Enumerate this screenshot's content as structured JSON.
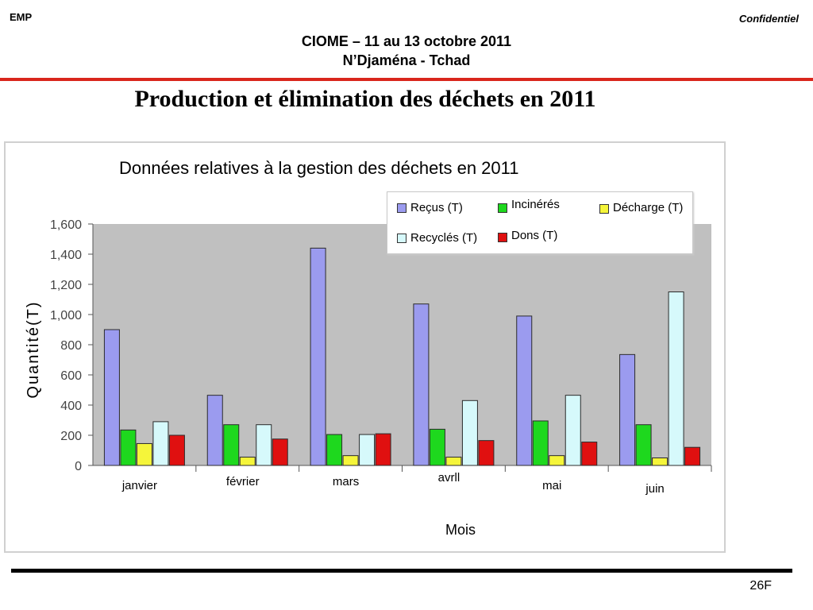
{
  "header": {
    "left": "EMP",
    "right": "Confidentiel",
    "title_line1": "CIOME – 11 au 13 octobre  2011",
    "title_line2": "N’Djaména  - Tchad"
  },
  "slide_title": "Production et élimination des déchets en 2011",
  "footer": {
    "page": "26F"
  },
  "colors": {
    "recus": "#9b9bef",
    "incineres": "#1ed81e",
    "decharge": "#f5f53a",
    "recycles": "#d6f9fb",
    "dons": "#e01010",
    "plot_bg": "#c0c0c0",
    "header_rule": "#d9261c"
  },
  "chart_data": {
    "type": "bar",
    "title": "Données relatives à la gestion des déchets en 2011",
    "xlabel": "Mois",
    "ylabel": "Quantité(T)",
    "ylim": [
      0,
      1600
    ],
    "yticks": [
      0,
      200,
      400,
      600,
      800,
      1000,
      1200,
      1400,
      1600
    ],
    "ytick_labels": [
      "0",
      "200",
      "400",
      "600",
      "800",
      "1,000",
      "1,200",
      "1,400",
      "1,600"
    ],
    "categories": [
      "janvier",
      "février",
      "mars",
      "avrll",
      "mai",
      "juin"
    ],
    "legend_position": "top-right",
    "grid": false,
    "series": [
      {
        "name": "Reçus (T)",
        "color": "#9b9bef",
        "values": [
          900,
          465,
          1440,
          1070,
          990,
          735
        ]
      },
      {
        "name": "Incinérés",
        "color": "#1ed81e",
        "values": [
          235,
          270,
          205,
          240,
          295,
          270
        ]
      },
      {
        "name": "Décharge (T)",
        "color": "#f5f53a",
        "values": [
          145,
          55,
          65,
          55,
          65,
          50
        ]
      },
      {
        "name": "Recyclés (T)",
        "color": "#d6f9fb",
        "values": [
          290,
          270,
          205,
          430,
          465,
          1150
        ]
      },
      {
        "name": "Dons (T)",
        "color": "#e01010",
        "values": [
          200,
          175,
          210,
          165,
          155,
          120
        ]
      }
    ]
  }
}
